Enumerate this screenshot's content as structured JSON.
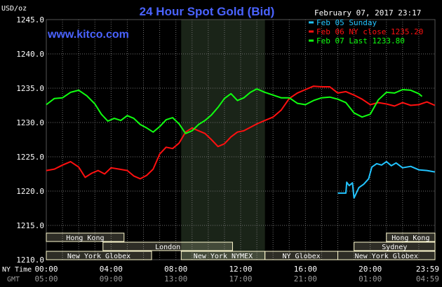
{
  "title": "24 Hour Spot Gold (Bid)",
  "website": "www.kitco.com",
  "ylabel": "USD/oz",
  "date_label": "February 07, 2017 23:17",
  "colors": {
    "background": "#000000",
    "title": "#4a63ff",
    "date_text": "#ffffff",
    "axis_text": "#ffffff",
    "gmt_text": "#9a9a9a",
    "grid": "#6e6e6e",
    "highlight_band": "#1a2418",
    "session_bar_fill": "#fffbd0",
    "session_bar_text": "#000000"
  },
  "legend": [
    {
      "label": "Feb 05 Sunday",
      "color": "#22c4ff"
    },
    {
      "label": "Feb 06 NY close 1235.20",
      "color": "#ff1010"
    },
    {
      "label": "Feb 07 Last 1233.80",
      "color": "#10ff10"
    }
  ],
  "bottom_axis_labels": {
    "ny_time": "NY Time",
    "gmt": "GMT"
  },
  "x_ticks_ny": [
    "00:00",
    "04:00",
    "08:00",
    "12:00",
    "16:00",
    "20:00",
    "23:59"
  ],
  "x_ticks_gmt": [
    "05:00",
    "09:00",
    "13:00",
    "17:00",
    "21:00",
    "01:00",
    "04:59"
  ],
  "sessions": {
    "row1": [
      {
        "label": "Hong Kong",
        "start": 0,
        "end": 4.8
      },
      {
        "label": "Hong Kong",
        "start": 21,
        "end": 24
      }
    ],
    "row2": [
      {
        "label": "London",
        "start": 3.5,
        "end": 11.5
      },
      {
        "label": "Sydney",
        "start": 19,
        "end": 24
      }
    ],
    "row3": [
      {
        "label": "New York Globex",
        "start": 0,
        "end": 6.5
      },
      {
        "label": "New York NYMEX",
        "start": 8.33,
        "end": 13.5
      },
      {
        "label": "NY Globex",
        "start": 13.5,
        "end": 18
      },
      {
        "label": "New York Globex",
        "start": 18,
        "end": 24
      }
    ]
  },
  "chart_data": {
    "type": "line",
    "title": "24 Hour Spot Gold (Bid)",
    "ylabel": "USD/oz",
    "xlabel": "",
    "xlim": [
      0,
      24
    ],
    "ylim": [
      1210,
      1245
    ],
    "y_ticks": [
      "1210.0",
      "1215.0",
      "1220.0",
      "1225.0",
      "1230.0",
      "1235.0",
      "1240.0",
      "1245.0"
    ],
    "highlight_range": [
      8.33,
      13.5
    ],
    "grid": true,
    "legend_position": "top-right",
    "series": [
      {
        "name": "Feb 05 Sunday",
        "color": "#22c4ff",
        "points": [
          [
            18.0,
            1219.7
          ],
          [
            18.5,
            1219.7
          ],
          [
            18.55,
            1221.3
          ],
          [
            18.7,
            1220.8
          ],
          [
            18.9,
            1221.2
          ],
          [
            19.0,
            1219.0
          ],
          [
            19.3,
            1220.5
          ],
          [
            19.6,
            1221.0
          ],
          [
            19.9,
            1221.8
          ],
          [
            20.1,
            1223.5
          ],
          [
            20.4,
            1224.0
          ],
          [
            20.7,
            1223.8
          ],
          [
            21.0,
            1224.3
          ],
          [
            21.3,
            1223.7
          ],
          [
            21.6,
            1224.1
          ],
          [
            22.0,
            1223.4
          ],
          [
            22.5,
            1223.6
          ],
          [
            23.0,
            1223.1
          ],
          [
            23.5,
            1223.0
          ],
          [
            23.99,
            1222.8
          ]
        ]
      },
      {
        "name": "Feb 06 NY close 1235.20",
        "color": "#ff1010",
        "points": [
          [
            0.0,
            1223.0
          ],
          [
            0.5,
            1223.2
          ],
          [
            1.0,
            1223.8
          ],
          [
            1.5,
            1224.3
          ],
          [
            2.0,
            1223.5
          ],
          [
            2.4,
            1222.0
          ],
          [
            2.8,
            1222.6
          ],
          [
            3.2,
            1223.0
          ],
          [
            3.6,
            1222.5
          ],
          [
            4.0,
            1223.4
          ],
          [
            4.5,
            1223.2
          ],
          [
            5.0,
            1223.0
          ],
          [
            5.4,
            1222.2
          ],
          [
            5.8,
            1221.8
          ],
          [
            6.2,
            1222.3
          ],
          [
            6.6,
            1223.2
          ],
          [
            7.0,
            1225.4
          ],
          [
            7.4,
            1226.4
          ],
          [
            7.8,
            1226.2
          ],
          [
            8.2,
            1227.0
          ],
          [
            8.6,
            1228.6
          ],
          [
            9.0,
            1229.2
          ],
          [
            9.4,
            1228.8
          ],
          [
            9.8,
            1228.4
          ],
          [
            10.2,
            1227.5
          ],
          [
            10.6,
            1226.5
          ],
          [
            11.0,
            1226.9
          ],
          [
            11.4,
            1227.9
          ],
          [
            11.8,
            1228.6
          ],
          [
            12.2,
            1228.8
          ],
          [
            12.6,
            1229.3
          ],
          [
            13.0,
            1229.8
          ],
          [
            13.5,
            1230.3
          ],
          [
            14.0,
            1230.8
          ],
          [
            14.5,
            1231.8
          ],
          [
            15.0,
            1233.5
          ],
          [
            15.5,
            1234.3
          ],
          [
            16.0,
            1234.8
          ],
          [
            16.5,
            1235.3
          ],
          [
            17.0,
            1235.2
          ],
          [
            17.5,
            1235.2
          ],
          [
            18.0,
            1234.3
          ],
          [
            18.5,
            1234.5
          ],
          [
            19.0,
            1234.0
          ],
          [
            19.5,
            1233.4
          ],
          [
            20.0,
            1232.6
          ],
          [
            20.5,
            1232.9
          ],
          [
            21.0,
            1232.7
          ],
          [
            21.5,
            1232.4
          ],
          [
            22.0,
            1232.9
          ],
          [
            22.5,
            1232.5
          ],
          [
            23.0,
            1232.6
          ],
          [
            23.5,
            1233.0
          ],
          [
            23.99,
            1232.5
          ]
        ]
      },
      {
        "name": "Feb 07 Last 1233.80",
        "color": "#10ff10",
        "points": [
          [
            0.0,
            1232.6
          ],
          [
            0.5,
            1233.5
          ],
          [
            1.0,
            1233.6
          ],
          [
            1.5,
            1234.4
          ],
          [
            2.0,
            1234.7
          ],
          [
            2.5,
            1233.9
          ],
          [
            3.0,
            1232.7
          ],
          [
            3.4,
            1231.2
          ],
          [
            3.8,
            1230.2
          ],
          [
            4.2,
            1230.6
          ],
          [
            4.6,
            1230.3
          ],
          [
            5.0,
            1231.0
          ],
          [
            5.4,
            1230.6
          ],
          [
            5.8,
            1229.7
          ],
          [
            6.2,
            1229.2
          ],
          [
            6.6,
            1228.6
          ],
          [
            7.0,
            1229.4
          ],
          [
            7.4,
            1230.4
          ],
          [
            7.8,
            1230.7
          ],
          [
            8.2,
            1229.8
          ],
          [
            8.6,
            1228.4
          ],
          [
            9.0,
            1228.8
          ],
          [
            9.4,
            1229.7
          ],
          [
            9.8,
            1230.3
          ],
          [
            10.2,
            1231.1
          ],
          [
            10.6,
            1232.2
          ],
          [
            11.0,
            1233.5
          ],
          [
            11.4,
            1234.2
          ],
          [
            11.8,
            1233.2
          ],
          [
            12.2,
            1233.6
          ],
          [
            12.6,
            1234.4
          ],
          [
            13.0,
            1234.9
          ],
          [
            13.5,
            1234.4
          ],
          [
            14.0,
            1234.0
          ],
          [
            14.5,
            1233.6
          ],
          [
            15.0,
            1233.6
          ],
          [
            15.5,
            1232.8
          ],
          [
            16.0,
            1232.6
          ],
          [
            16.5,
            1233.2
          ],
          [
            17.0,
            1233.6
          ],
          [
            17.5,
            1233.7
          ],
          [
            18.0,
            1233.4
          ],
          [
            18.5,
            1232.9
          ],
          [
            19.0,
            1231.4
          ],
          [
            19.5,
            1230.8
          ],
          [
            20.0,
            1231.2
          ],
          [
            20.5,
            1233.3
          ],
          [
            21.0,
            1234.4
          ],
          [
            21.5,
            1234.3
          ],
          [
            22.0,
            1234.8
          ],
          [
            22.5,
            1234.7
          ],
          [
            23.0,
            1234.2
          ],
          [
            23.2,
            1233.8
          ]
        ]
      }
    ]
  }
}
